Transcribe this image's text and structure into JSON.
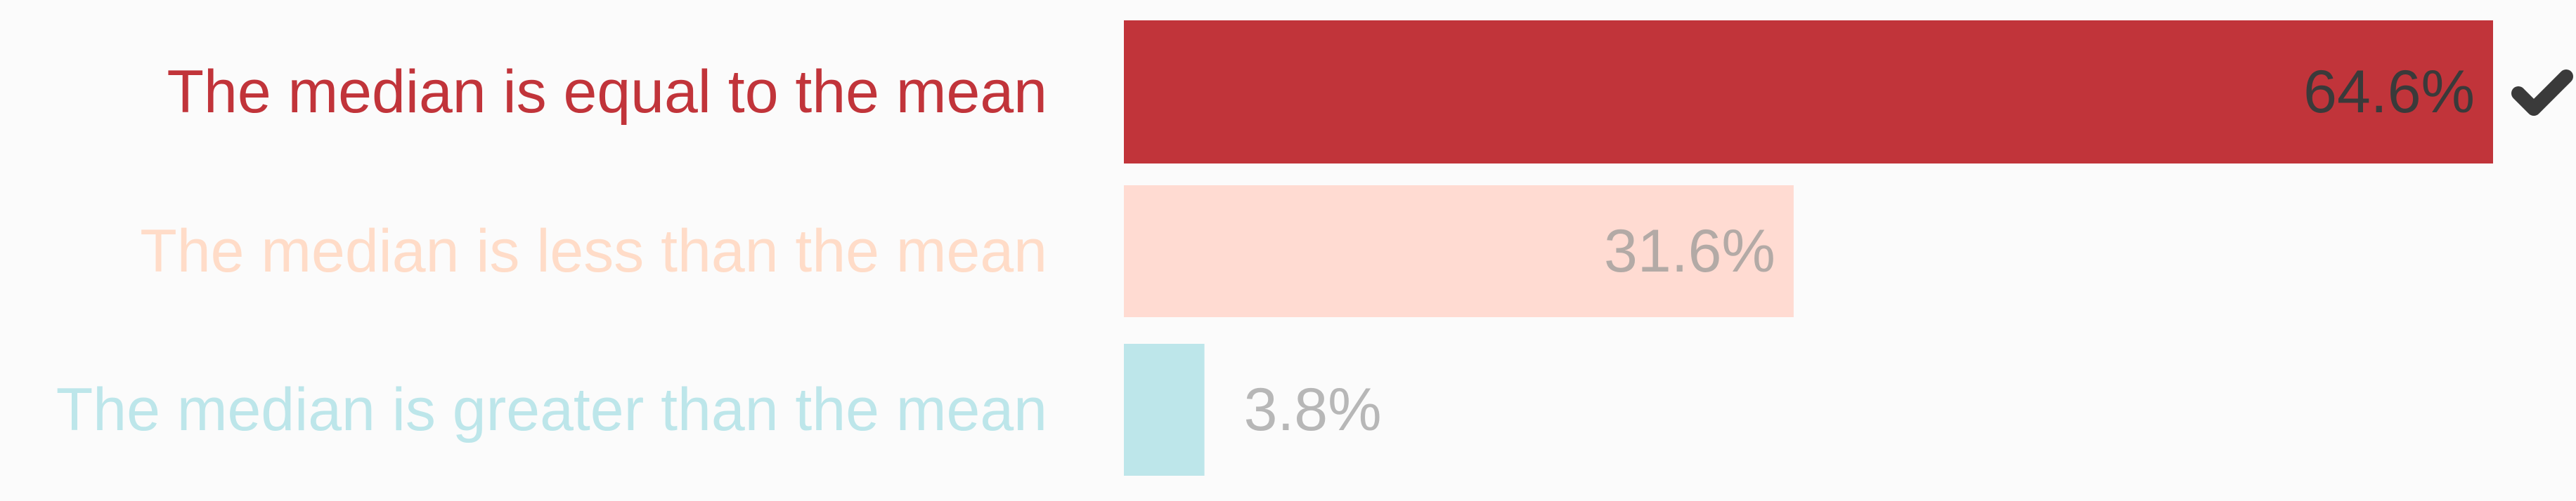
{
  "chart_data": {
    "type": "bar",
    "orientation": "horizontal",
    "categories": [
      "The median is equal to the mean",
      "The median is less than the mean",
      "The median is greater than the mean"
    ],
    "values": [
      64.6,
      31.6,
      3.8
    ],
    "value_labels": [
      "64.6%",
      "31.6%",
      "3.8%"
    ],
    "correct_index": 0,
    "correct_icon": "checkmark-icon",
    "colors": {
      "bars": [
        "#c1343a",
        "#ffdbd2",
        "#bde6ea"
      ],
      "category_text": [
        "#c1343a",
        "#ffdcc8",
        "#bde6ea"
      ],
      "value_text": [
        "#3a3a3a",
        "#b3aaa6",
        "#b7b7b7"
      ],
      "checkmark": "#3a3a3a",
      "background": "#fbfbfb"
    },
    "xlim": [
      0,
      64.6
    ],
    "grid": false,
    "legend": "none"
  }
}
